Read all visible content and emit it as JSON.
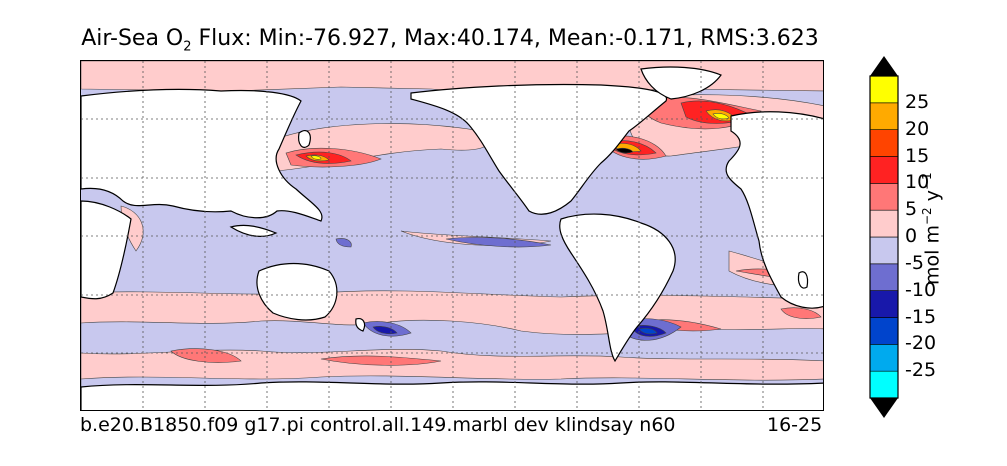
{
  "title": {
    "prefix": "Air-Sea O",
    "subscript": "2",
    "rest": " Flux: Min:-76.927, Max:40.174, Mean:-0.171, RMS:3.623"
  },
  "caption": {
    "left": "b.e20.B1850.f09 g17.pi control.all.149.marbl dev klindsay n60",
    "right": "16-25"
  },
  "colorbar": {
    "units_main": "mol m",
    "units_exp1": "−2",
    "units_mid": " y",
    "units_exp2": "−1",
    "tick_labels": [
      "25",
      "20",
      "15",
      "10",
      "5",
      "0",
      "-5",
      "-10",
      "-15",
      "-20",
      "-25"
    ],
    "colors": [
      "#00ffff",
      "#00aaee",
      "#0044cc",
      "#1818aa",
      "#6e6ed0",
      "#c8c8ee",
      "#ffcccc",
      "#ff7777",
      "#ff2222",
      "#ff4400",
      "#ffaa00",
      "#ffff00"
    ],
    "extend_low": "#000000",
    "extend_high": "#000000"
  },
  "map": {
    "projection": "cylindrical",
    "ocean_base": "#c8c8ee",
    "land": "#ffffff",
    "gridlines": "dotted"
  }
}
